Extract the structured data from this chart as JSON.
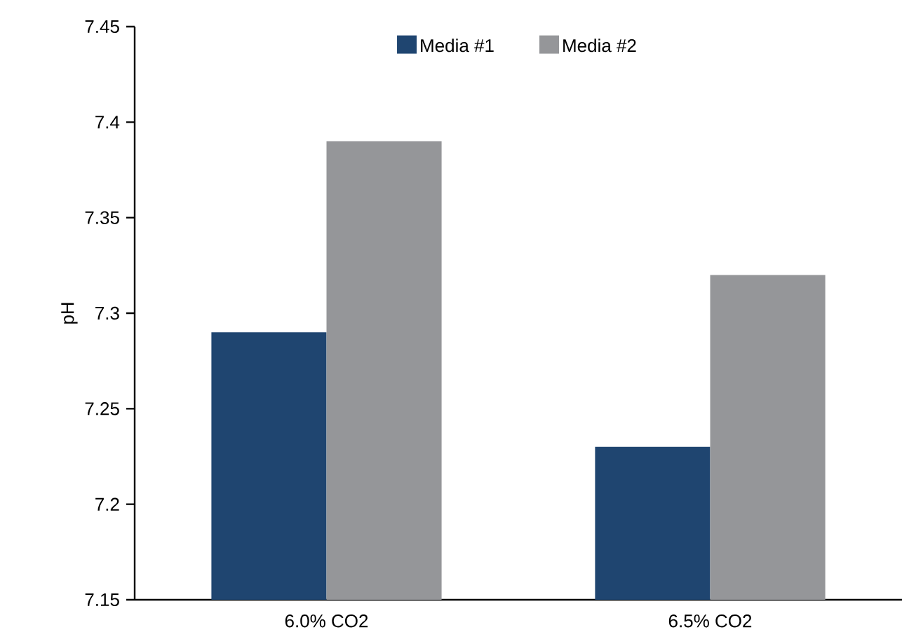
{
  "chart_data": {
    "type": "bar",
    "ylabel": "pH",
    "categories": [
      "6.0% CO2",
      "6.5% CO2"
    ],
    "series": [
      {
        "name": "Media #1",
        "color": "#1f4570",
        "values": [
          7.29,
          7.23
        ]
      },
      {
        "name": "Media #2",
        "color": "#959699",
        "values": [
          7.39,
          7.32
        ]
      }
    ],
    "ylim": [
      7.15,
      7.45
    ],
    "yticks": [
      7.15,
      7.2,
      7.25,
      7.3,
      7.35,
      7.4,
      7.45
    ],
    "legend": "top",
    "grid": false
  }
}
